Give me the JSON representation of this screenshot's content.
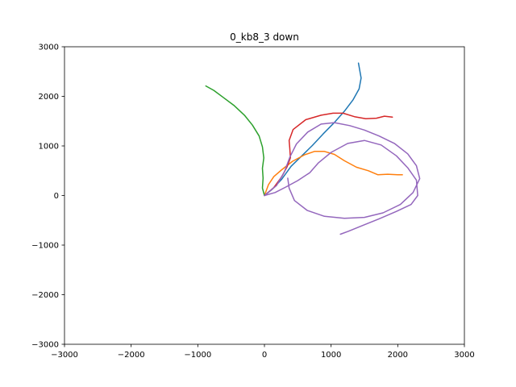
{
  "chart_data": {
    "type": "line",
    "title": "0_kb8_3 down",
    "xlabel": "",
    "ylabel": "",
    "xlim": [
      -3000,
      3000
    ],
    "ylim": [
      -3000,
      3000
    ],
    "x_ticks": [
      -3000,
      -2000,
      -1000,
      0,
      1000,
      2000,
      3000
    ],
    "y_ticks": [
      -3000,
      -2000,
      -1000,
      0,
      1000,
      2000,
      3000
    ],
    "x_tick_labels": [
      "−3000",
      "−2000",
      "−1000",
      "0",
      "1000",
      "2000",
      "3000"
    ],
    "y_tick_labels": [
      "−3000",
      "−2000",
      "−1000",
      "0",
      "1000",
      "2000",
      "3000"
    ],
    "grid": false,
    "legend": "none",
    "series": [
      {
        "color": "#1f77b4",
        "points": [
          [
            0,
            0
          ],
          [
            120,
            130
          ],
          [
            260,
            330
          ],
          [
            400,
            590
          ],
          [
            560,
            800
          ],
          [
            720,
            1010
          ],
          [
            880,
            1240
          ],
          [
            1040,
            1460
          ],
          [
            1200,
            1700
          ],
          [
            1330,
            1930
          ],
          [
            1420,
            2150
          ],
          [
            1450,
            2370
          ],
          [
            1410,
            2670
          ]
        ]
      },
      {
        "color": "#ff7f0e",
        "points": [
          [
            0,
            0
          ],
          [
            60,
            220
          ],
          [
            140,
            380
          ],
          [
            260,
            520
          ],
          [
            420,
            690
          ],
          [
            600,
            820
          ],
          [
            750,
            890
          ],
          [
            900,
            890
          ],
          [
            1050,
            830
          ],
          [
            1200,
            700
          ],
          [
            1380,
            570
          ],
          [
            1560,
            500
          ],
          [
            1700,
            420
          ],
          [
            1850,
            430
          ],
          [
            2000,
            420
          ],
          [
            2070,
            420
          ]
        ]
      },
      {
        "color": "#2ca02c",
        "points": [
          [
            -880,
            2210
          ],
          [
            -760,
            2120
          ],
          [
            -620,
            1980
          ],
          [
            -460,
            1820
          ],
          [
            -300,
            1620
          ],
          [
            -180,
            1420
          ],
          [
            -80,
            1200
          ],
          [
            -30,
            980
          ],
          [
            -10,
            760
          ],
          [
            -30,
            550
          ],
          [
            -20,
            350
          ],
          [
            -30,
            150
          ],
          [
            0,
            0
          ]
        ]
      },
      {
        "color": "#d62728",
        "points": [
          [
            0,
            0
          ],
          [
            140,
            160
          ],
          [
            260,
            380
          ],
          [
            340,
            580
          ],
          [
            390,
            760
          ],
          [
            380,
            960
          ],
          [
            370,
            1110
          ],
          [
            430,
            1330
          ],
          [
            620,
            1530
          ],
          [
            850,
            1620
          ],
          [
            1030,
            1660
          ],
          [
            1180,
            1660
          ],
          [
            1350,
            1590
          ],
          [
            1520,
            1550
          ],
          [
            1680,
            1560
          ],
          [
            1800,
            1600
          ],
          [
            1920,
            1580
          ]
        ]
      },
      {
        "color": "#9467bd",
        "points": [
          [
            0,
            0
          ],
          [
            160,
            60
          ],
          [
            320,
            170
          ],
          [
            500,
            300
          ],
          [
            680,
            460
          ],
          [
            810,
            660
          ],
          [
            1000,
            870
          ],
          [
            1250,
            1050
          ],
          [
            1500,
            1110
          ],
          [
            1750,
            1020
          ],
          [
            1980,
            800
          ],
          [
            2150,
            560
          ],
          [
            2280,
            310
          ],
          [
            2300,
            0
          ],
          [
            2200,
            -180
          ],
          [
            1980,
            -320
          ],
          [
            1720,
            -470
          ],
          [
            1480,
            -600
          ],
          [
            1260,
            -720
          ],
          [
            1140,
            -780
          ]
        ]
      },
      {
        "color": "#9467bd",
        "points": [
          [
            0,
            0
          ],
          [
            180,
            200
          ],
          [
            300,
            480
          ],
          [
            380,
            770
          ],
          [
            480,
            1040
          ],
          [
            650,
            1280
          ],
          [
            850,
            1440
          ],
          [
            1050,
            1470
          ],
          [
            1280,
            1410
          ],
          [
            1500,
            1320
          ],
          [
            1720,
            1200
          ],
          [
            1950,
            1050
          ],
          [
            2150,
            840
          ],
          [
            2280,
            600
          ],
          [
            2330,
            340
          ],
          [
            2230,
            60
          ],
          [
            2040,
            -180
          ],
          [
            1780,
            -350
          ],
          [
            1500,
            -440
          ],
          [
            1200,
            -460
          ],
          [
            900,
            -420
          ],
          [
            640,
            -300
          ],
          [
            450,
            -100
          ],
          [
            370,
            150
          ],
          [
            350,
            350
          ]
        ]
      }
    ]
  }
}
